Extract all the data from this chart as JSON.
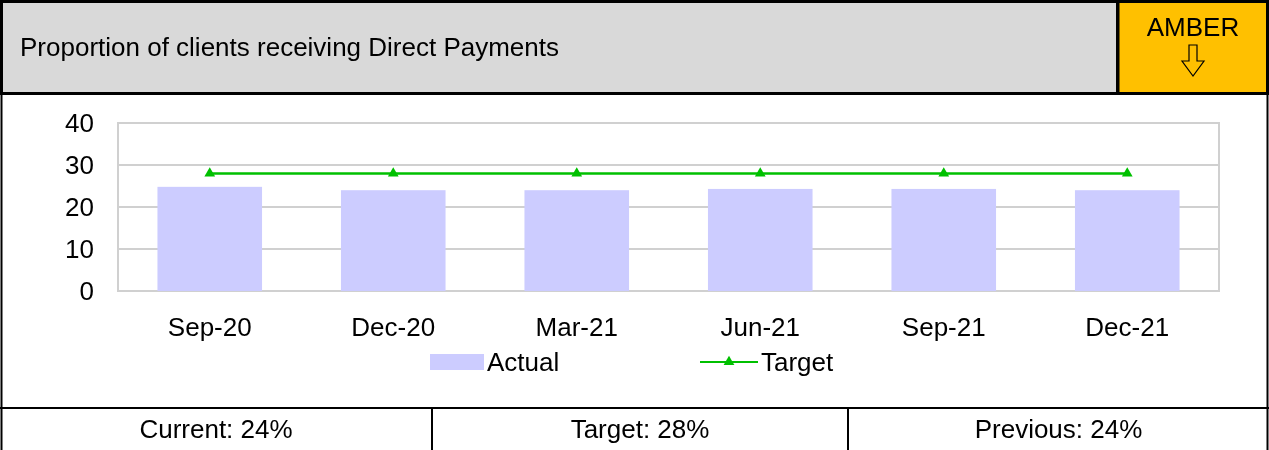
{
  "chart_data": {
    "type": "bar",
    "title": "Proportion of clients receiving Direct Payments",
    "categories": [
      "Sep-20",
      "Dec-20",
      "Mar-21",
      "Jun-21",
      "Sep-21",
      "Dec-21"
    ],
    "series": [
      {
        "name": "Actual",
        "color": "#ccccff",
        "values": [
          24.8,
          24,
          24,
          24.3,
          24.3,
          24
        ]
      },
      {
        "name": "Target",
        "type": "line",
        "color": "#00c000",
        "marker": "triangle",
        "values": [
          28,
          28,
          28,
          28,
          28,
          28
        ]
      }
    ],
    "ylim": [
      0,
      40
    ],
    "yticks": [
      0,
      10,
      20,
      30,
      40
    ],
    "grid": "y",
    "legend": "bottom",
    "annotations": [
      "AMBER",
      "Current: 24%",
      "Target: 28%",
      "Previous: 24%"
    ]
  }
}
